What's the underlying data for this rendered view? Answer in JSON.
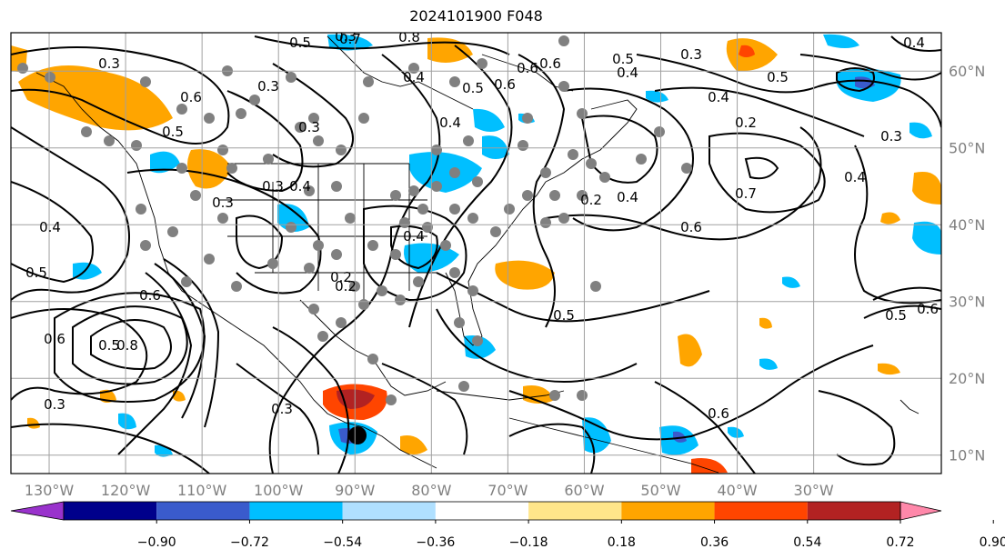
{
  "title": "2024101900 F048",
  "map": {
    "lon_ticks": [
      -130,
      -120,
      -110,
      -100,
      -90,
      -80,
      -70,
      -60,
      -50,
      -40,
      -30
    ],
    "lon_labels": [
      "130°W",
      "120°W",
      "110°W",
      "100°W",
      "90°W",
      "80°W",
      "70°W",
      "60°W",
      "50°W",
      "40°W",
      "30°W"
    ],
    "lat_ticks": [
      10,
      20,
      30,
      40,
      50,
      60
    ],
    "lat_labels": [
      "10°N",
      "20°N",
      "30°N",
      "40°N",
      "50°N",
      "60°N"
    ],
    "contour_labels": [
      "0.3",
      "0.5",
      "0.7",
      "0.8",
      "0.6",
      "0.6",
      "0.4",
      "0.5",
      "0.6",
      "0.5",
      "0.4",
      "0.3",
      "0.3",
      "0.3",
      "0.4",
      "0.5",
      "0.5",
      "0.4",
      "0.3",
      "0.6",
      "0.5",
      "0.7",
      "0.6",
      "0.4",
      "0.2",
      "0.6",
      "0.8",
      "0.3",
      "0.4",
      "0.2",
      "0.5",
      "0.3",
      "0.2",
      "0.4",
      "0.5",
      "0.6",
      "0.3",
      "0.6",
      "0.4",
      "0.5",
      "0.6",
      "0.4",
      "0.4",
      "0.3",
      "0.2",
      "0.3"
    ],
    "colors": {
      "land_coast": "#000000",
      "grid": "#a0a0a0"
    }
  },
  "colorbar": {
    "colors": [
      "#9932cc",
      "#00008b",
      "#3a5bcc",
      "#00bfff",
      "#b0e0ff",
      "#ffffff",
      "#ffe68a",
      "#ffa500",
      "#ff4500",
      "#b22222",
      "#ff88aa"
    ],
    "labels": [
      "−0.90",
      "−0.72",
      "−0.54",
      "−0.36",
      "−0.18",
      "0.18",
      "0.36",
      "0.54",
      "0.72",
      "0.90"
    ]
  }
}
